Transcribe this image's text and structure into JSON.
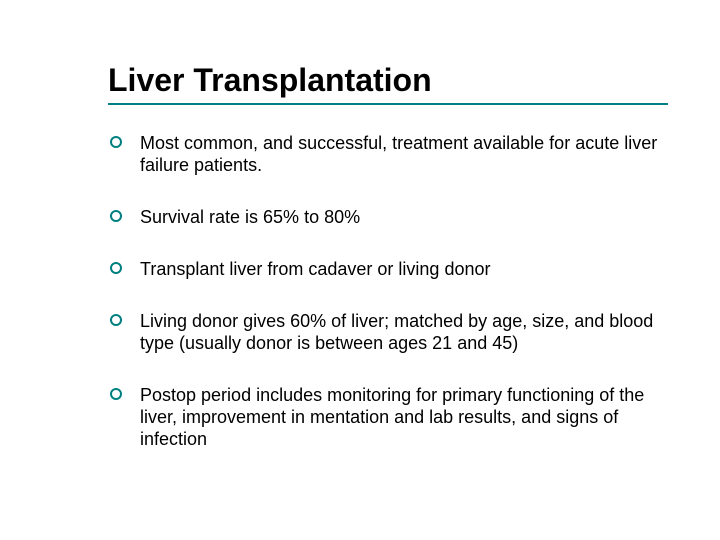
{
  "slide": {
    "title": "Liver Transplantation",
    "rule_color": "#008080",
    "bullet_marker_color": "#008080",
    "title_color": "#000000",
    "text_color": "#000000",
    "background_color": "#ffffff",
    "title_fontsize": 32,
    "body_fontsize": 18,
    "bullets": [
      "Most common, and successful, treatment available for acute liver failure patients.",
      "Survival rate is 65% to 80%",
      "Transplant liver from cadaver or living donor",
      "Living donor gives 60% of liver; matched by age, size, and blood type (usually donor is between ages 21 and 45)",
      "Postop period includes monitoring for primary functioning of the liver, improvement in mentation and lab results, and signs of infection"
    ]
  }
}
